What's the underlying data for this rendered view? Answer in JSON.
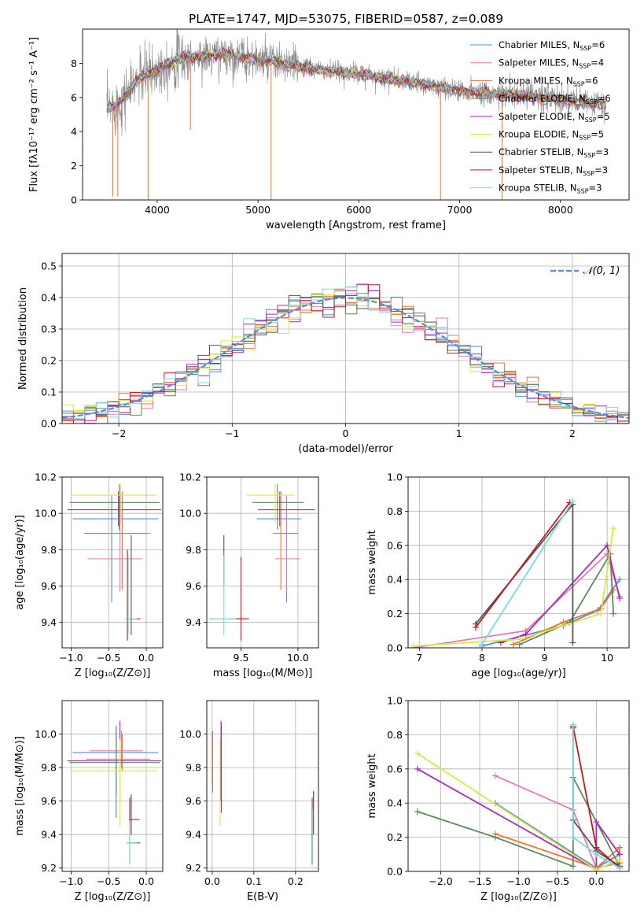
{
  "figure": {
    "title": "PLATE=1747, MJD=53075, FIBERID=0587, z=0.089"
  },
  "colors": {
    "Chabrier MILES": "#5b8ad6",
    "Salpeter MILES": "#e07bb5",
    "Kroupa MILES": "#e8772e",
    "Chabrier ELODIE": "#5e8a5e",
    "Salpeter ELODIE": "#a42db8",
    "Kroupa ELODIE": "#d9ea3c",
    "Chabrier STELIB": "#555555",
    "Salpeter STELIB": "#c0181f",
    "Kroupa STELIB": "#7fd6df",
    "data": "#888888",
    "normal": "#5b8ad6"
  },
  "chart_data": [
    {
      "id": "spectrum",
      "type": "line",
      "xlabel": "wavelength [Angstrom, rest frame]",
      "ylabel": "Flux [fλ10⁻¹⁷ erg cm⁻² s⁻¹ A⁻¹]",
      "xlim": [
        3260,
        8680
      ],
      "ylim": [
        0,
        10
      ],
      "xticks": [
        4000,
        5000,
        6000,
        7000,
        8000
      ],
      "yticks": [
        0,
        2,
        4,
        6,
        8
      ],
      "legend_position": "top-right",
      "legend": [
        {
          "name": "Chabrier MILES",
          "nssp": "6"
        },
        {
          "name": "Salpeter MILES",
          "nssp": "4"
        },
        {
          "name": "Kroupa MILES",
          "nssp": "6"
        },
        {
          "name": "Chabrier ELODIE",
          "nssp": "6"
        },
        {
          "name": "Salpeter ELODIE",
          "nssp": "5"
        },
        {
          "name": "Kroupa ELODIE",
          "nssp": "5"
        },
        {
          "name": "Chabrier STELIB",
          "nssp": "3"
        },
        {
          "name": "Salpeter STELIB",
          "nssp": "3"
        },
        {
          "name": "Kroupa STELIB",
          "nssp": "3"
        }
      ],
      "continuum": [
        [
          3500,
          5.3
        ],
        [
          3600,
          5.6
        ],
        [
          3700,
          6.2
        ],
        [
          3800,
          7.0
        ],
        [
          3900,
          7.4
        ],
        [
          4000,
          7.6
        ],
        [
          4100,
          8.0
        ],
        [
          4200,
          8.2
        ],
        [
          4300,
          8.3
        ],
        [
          4400,
          8.4
        ],
        [
          4500,
          8.4
        ],
        [
          4600,
          8.5
        ],
        [
          4700,
          8.5
        ],
        [
          4800,
          8.4
        ],
        [
          5000,
          8.2
        ],
        [
          5200,
          8.0
        ],
        [
          5400,
          7.8
        ],
        [
          5600,
          7.6
        ],
        [
          5800,
          7.5
        ],
        [
          6000,
          7.4
        ],
        [
          6200,
          7.2
        ],
        [
          6400,
          7.0
        ],
        [
          6600,
          6.8
        ],
        [
          6800,
          6.6
        ],
        [
          7000,
          6.4
        ],
        [
          7200,
          6.3
        ],
        [
          7400,
          6.2
        ],
        [
          7600,
          6.1
        ],
        [
          7800,
          6.0
        ],
        [
          8000,
          5.9
        ],
        [
          8200,
          5.7
        ],
        [
          8450,
          5.6
        ]
      ],
      "spikes": [
        [
          3560,
          0.2
        ],
        [
          3610,
          0.2
        ],
        [
          3910,
          0
        ],
        [
          5130,
          0
        ],
        [
          6810,
          0
        ],
        [
          7420,
          0
        ],
        [
          4330,
          4.1
        ]
      ]
    },
    {
      "id": "residuals",
      "type": "bar",
      "xlabel": "(data-model)/error",
      "ylabel": "Normed distribution",
      "xlim": [
        -2.5,
        2.5
      ],
      "ylim": [
        0,
        0.54
      ],
      "xticks": [
        -2,
        -1,
        0,
        1,
        2
      ],
      "yticks": [
        0.0,
        0.1,
        0.2,
        0.3,
        0.4,
        0.5
      ],
      "normal_label": "𝒩(0, 1)",
      "bin_width": 0.1
    },
    {
      "id": "age-vs-Z",
      "type": "scatter",
      "xlabel": "Z [log₁₀(Z/Z⊙)]",
      "ylabel": "age  [log₁₀(age/yr)]",
      "xlim": [
        -1.12,
        0.22
      ],
      "ylim": [
        9.26,
        10.2
      ],
      "xticks": [
        -1.0,
        -0.5,
        0.0
      ],
      "yticks": [
        9.4,
        9.6,
        9.8,
        10.0,
        10.2
      ],
      "points": [
        {
          "m": "Chabrier MILES",
          "x": -0.46,
          "y": 9.97,
          "ex": [
            -0.98,
            0.16
          ],
          "ey": [
            9.51,
            10.1
          ]
        },
        {
          "m": "Salpeter MILES",
          "x": -0.35,
          "y": 9.75,
          "ex": [
            -0.78,
            -0.05
          ],
          "ey": [
            9.57,
            10.1
          ]
        },
        {
          "m": "Kroupa MILES",
          "x": -0.32,
          "y": 9.89,
          "ex": [
            -0.83,
            0.05
          ],
          "ey": [
            9.58,
            10.12
          ]
        },
        {
          "m": "Chabrier ELODIE",
          "x": -0.36,
          "y": 10.06,
          "ex": [
            -1.02,
            0.18
          ],
          "ey": [
            9.91,
            10.16
          ]
        },
        {
          "m": "Salpeter ELODIE",
          "x": -0.37,
          "y": 10.02,
          "ex": [
            -1.05,
            0.2
          ],
          "ey": [
            9.93,
            10.12
          ]
        },
        {
          "m": "Kroupa ELODIE",
          "x": -0.34,
          "y": 10.1,
          "ex": [
            -0.99,
            0.14
          ],
          "ey": [
            9.95,
            10.16
          ]
        },
        {
          "m": "Chabrier STELIB",
          "x": -0.2,
          "y": 9.42,
          "ex": [
            -0.25,
            -0.09
          ],
          "ey": [
            9.33,
            9.88
          ]
        },
        {
          "m": "Salpeter STELIB",
          "x": -0.25,
          "y": 9.42,
          "ex": [
            -0.27,
            -0.08
          ],
          "ey": [
            9.3,
            9.8
          ]
        },
        {
          "m": "Kroupa STELIB",
          "x": -0.24,
          "y": 9.42,
          "ex": [
            -0.26,
            -0.12
          ],
          "ey": [
            9.34,
            9.77
          ]
        }
      ]
    },
    {
      "id": "age-vs-mass",
      "type": "scatter",
      "xlabel": "mass [log₁₀(M/M⊙)]",
      "ylabel": "",
      "xlim": [
        9.2,
        10.18
      ],
      "ylim": [
        9.26,
        10.2
      ],
      "xticks": [
        9.5,
        10.0
      ],
      "yticks": [
        9.4,
        9.6,
        9.8,
        10.0,
        10.2
      ],
      "points": [
        {
          "m": "Chabrier MILES",
          "x": 9.9,
          "y": 9.97,
          "ex": [
            9.64,
            10.03
          ],
          "ey": [
            9.51,
            10.1
          ]
        },
        {
          "m": "Salpeter MILES",
          "x": 9.9,
          "y": 9.75,
          "ex": [
            9.8,
            10.02
          ],
          "ey": [
            9.57,
            10.1
          ]
        },
        {
          "m": "Kroupa MILES",
          "x": 9.85,
          "y": 9.89,
          "ex": [
            9.78,
            10.0
          ],
          "ey": [
            9.58,
            10.12
          ]
        },
        {
          "m": "Chabrier ELODIE",
          "x": 9.82,
          "y": 10.06,
          "ex": [
            9.6,
            10.05
          ],
          "ey": [
            9.91,
            10.16
          ]
        },
        {
          "m": "Salpeter ELODIE",
          "x": 9.84,
          "y": 10.02,
          "ex": [
            9.65,
            10.15
          ],
          "ey": [
            9.93,
            10.12
          ]
        },
        {
          "m": "Kroupa ELODIE",
          "x": 9.8,
          "y": 10.1,
          "ex": [
            9.55,
            9.97
          ],
          "ey": [
            9.95,
            10.16
          ]
        },
        {
          "m": "Chabrier STELIB",
          "x": 9.35,
          "y": 9.42,
          "ex": [
            9.22,
            9.48
          ],
          "ey": [
            9.6,
            9.88
          ]
        },
        {
          "m": "Salpeter STELIB",
          "x": 9.5,
          "y": 9.42,
          "ex": [
            9.4,
            9.57
          ],
          "ey": [
            9.3,
            9.76
          ]
        },
        {
          "m": "Kroupa STELIB",
          "x": 9.35,
          "y": 9.42,
          "ex": [
            9.22,
            9.46
          ],
          "ey": [
            9.33,
            9.77
          ]
        }
      ]
    },
    {
      "id": "mass-weight-vs-age",
      "type": "line",
      "xlabel": "age  [log₁₀(age/yr)]",
      "ylabel": "mass weight",
      "xlim": [
        6.82,
        10.35
      ],
      "ylim": [
        0,
        1.0
      ],
      "xticks": [
        7,
        8,
        9,
        10
      ],
      "yticks": [
        0.0,
        0.2,
        0.4,
        0.6,
        0.8,
        1.0
      ],
      "series": [
        {
          "m": "Chabrier MILES",
          "x": [
            8.0,
            9.3,
            9.85,
            10.2
          ],
          "y": [
            0.01,
            0.13,
            0.22,
            0.4
          ]
        },
        {
          "m": "Salpeter MILES",
          "x": [
            6.9,
            8.7,
            10.0,
            10.2
          ],
          "y": [
            0.0,
            0.1,
            0.55,
            0.3
          ]
        },
        {
          "m": "Kroupa MILES",
          "x": [
            8.5,
            9.3,
            9.9,
            10.1
          ],
          "y": [
            0.02,
            0.15,
            0.23,
            0.34
          ]
        },
        {
          "m": "Chabrier ELODIE",
          "x": [
            8.6,
            9.4,
            10.05,
            10.1
          ],
          "y": [
            0.02,
            0.15,
            0.55,
            0.2
          ]
        },
        {
          "m": "Salpeter ELODIE",
          "x": [
            8.3,
            8.7,
            10.0,
            10.2
          ],
          "y": [
            0.03,
            0.08,
            0.6,
            0.29
          ]
        },
        {
          "m": "Kroupa ELODIE",
          "x": [
            6.9,
            8.6,
            9.9,
            10.1
          ],
          "y": [
            0.01,
            0.05,
            0.2,
            0.7
          ]
        },
        {
          "m": "Chabrier STELIB",
          "x": [
            7.9,
            9.45,
            9.45
          ],
          "y": [
            0.14,
            0.84,
            0.03
          ]
        },
        {
          "m": "Salpeter STELIB",
          "x": [
            7.9,
            9.4
          ],
          "y": [
            0.12,
            0.85
          ]
        },
        {
          "m": "Kroupa STELIB",
          "x": [
            8.0,
            9.45
          ],
          "y": [
            0.02,
            0.86
          ]
        }
      ]
    },
    {
      "id": "mass-vs-Z",
      "type": "scatter",
      "xlabel": "Z [log₁₀(Z/Z⊙)]",
      "ylabel": "mass [log₁₀(M/M⊙)]",
      "xlim": [
        -1.12,
        0.22
      ],
      "ylim": [
        9.18,
        10.2
      ],
      "xticks": [
        -1.0,
        -0.5,
        0.0
      ],
      "yticks": [
        9.2,
        9.4,
        9.6,
        9.8,
        10.0
      ],
      "points": [
        {
          "m": "Chabrier MILES",
          "x": -0.4,
          "y": 9.89,
          "ex": [
            -0.98,
            0.16
          ],
          "ey": [
            9.64,
            10.03
          ]
        },
        {
          "m": "Salpeter MILES",
          "x": -0.33,
          "y": 9.9,
          "ex": [
            -0.75,
            -0.05
          ],
          "ey": [
            9.8,
            10.02
          ]
        },
        {
          "m": "Kroupa MILES",
          "x": -0.32,
          "y": 9.85,
          "ex": [
            -0.8,
            0.05
          ],
          "ey": [
            9.78,
            10.0
          ]
        },
        {
          "m": "Chabrier ELODIE",
          "x": -0.4,
          "y": 9.83,
          "ex": [
            -1.02,
            0.18
          ],
          "ey": [
            9.5,
            10.05
          ]
        },
        {
          "m": "Salpeter ELODIE",
          "x": -0.35,
          "y": 9.84,
          "ex": [
            -1.05,
            0.2
          ],
          "ey": [
            9.62,
            10.08
          ]
        },
        {
          "m": "Kroupa ELODIE",
          "x": -0.35,
          "y": 9.78,
          "ex": [
            -0.99,
            0.14
          ],
          "ey": [
            9.45,
            9.97
          ]
        },
        {
          "m": "Chabrier STELIB",
          "x": -0.22,
          "y": 9.35,
          "ex": [
            -0.25,
            -0.08
          ],
          "ey": [
            9.22,
            9.62
          ]
        },
        {
          "m": "Salpeter STELIB",
          "x": -0.2,
          "y": 9.49,
          "ex": [
            -0.22,
            -0.09
          ],
          "ey": [
            9.4,
            9.64
          ]
        },
        {
          "m": "Kroupa STELIB",
          "x": -0.22,
          "y": 9.35,
          "ex": [
            -0.26,
            -0.12
          ],
          "ey": [
            9.22,
            9.48
          ]
        }
      ]
    },
    {
      "id": "mass-vs-EBV",
      "type": "scatter",
      "xlabel": "E(B-V)",
      "ylabel": "",
      "xlim": [
        -0.013,
        0.255
      ],
      "ylim": [
        9.18,
        10.2
      ],
      "xticks": [
        0.0,
        0.1,
        0.2
      ],
      "yticks": [
        9.2,
        9.4,
        9.6,
        9.8,
        10.0
      ],
      "points": [
        {
          "m": "Chabrier MILES",
          "x": 0.001,
          "y": 9.9,
          "ey": [
            9.65,
            10.02
          ]
        },
        {
          "m": "Salpeter MILES",
          "x": 0.021,
          "y": 9.9,
          "ey": [
            9.8,
            10.03
          ]
        },
        {
          "m": "Kroupa MILES",
          "x": 0.0,
          "y": 9.85,
          "ey": [
            9.7,
            10.0
          ]
        },
        {
          "m": "Chabrier ELODIE",
          "x": 0.021,
          "y": 9.83,
          "ey": [
            9.6,
            10.08
          ]
        },
        {
          "m": "Salpeter ELODIE",
          "x": 0.022,
          "y": 9.84,
          "ey": [
            9.53,
            10.07
          ]
        },
        {
          "m": "Kroupa ELODIE",
          "x": 0.019,
          "y": 9.78,
          "ey": [
            9.45,
            9.97
          ]
        },
        {
          "m": "Chabrier STELIB",
          "x": 0.24,
          "y": 9.35,
          "ey": [
            9.22,
            9.62
          ]
        },
        {
          "m": "Salpeter STELIB",
          "x": 0.243,
          "y": 9.49,
          "ey": [
            9.4,
            9.66
          ]
        },
        {
          "m": "Kroupa STELIB",
          "x": 0.241,
          "y": 9.35,
          "ey": [
            9.22,
            9.55
          ]
        }
      ]
    },
    {
      "id": "mass-weight-vs-Z",
      "type": "line",
      "xlabel": "Z [log₁₀(Z/Z⊙)]",
      "ylabel": "mass weight",
      "xlim": [
        -2.42,
        0.42
      ],
      "ylim": [
        0,
        1.0
      ],
      "xticks": [
        -2.0,
        -1.5,
        -1.0,
        -0.5,
        0.0
      ],
      "yticks": [
        0.0,
        0.2,
        0.4,
        0.6,
        0.8,
        1.0
      ],
      "series": [
        {
          "m": "Chabrier MILES",
          "x": [
            -1.3,
            0.0,
            0.3
          ],
          "y": [
            0.4,
            0.02,
            0.1
          ]
        },
        {
          "m": "Salpeter MILES",
          "x": [
            -1.3,
            -0.3,
            0.0,
            0.3
          ],
          "y": [
            0.56,
            0.36,
            0.02,
            0.05
          ]
        },
        {
          "m": "Kroupa MILES",
          "x": [
            -1.3,
            0.0,
            0.3,
            0.3
          ],
          "y": [
            0.22,
            0.02,
            0.14,
            0.05
          ]
        },
        {
          "m": "Chabrier ELODIE",
          "x": [
            -2.3,
            -1.3,
            -0.3,
            -0.3,
            0.3
          ],
          "y": [
            0.35,
            0.2,
            0.03,
            0.55,
            0.03
          ]
        },
        {
          "m": "Salpeter ELODIE",
          "x": [
            -2.3,
            0.0,
            0.0,
            0.3
          ],
          "y": [
            0.6,
            0.01,
            0.29,
            0.1
          ]
        },
        {
          "m": "Kroupa ELODIE",
          "x": [
            -2.3,
            0.0,
            0.3
          ],
          "y": [
            0.69,
            0.01,
            0.07
          ]
        },
        {
          "m": "Chabrier STELIB",
          "x": [
            -0.3,
            -0.3,
            0.0,
            0.3
          ],
          "y": [
            0.84,
            0.3,
            0.12,
            0.03
          ]
        },
        {
          "m": "Salpeter STELIB",
          "x": [
            -0.3,
            0.0,
            0.3
          ],
          "y": [
            0.85,
            0.14,
            0.02
          ]
        },
        {
          "m": "Kroupa STELIB",
          "x": [
            -0.3,
            -0.3,
            0.0,
            0.3
          ],
          "y": [
            0.86,
            0.2,
            0.1,
            0.02
          ]
        }
      ]
    }
  ]
}
